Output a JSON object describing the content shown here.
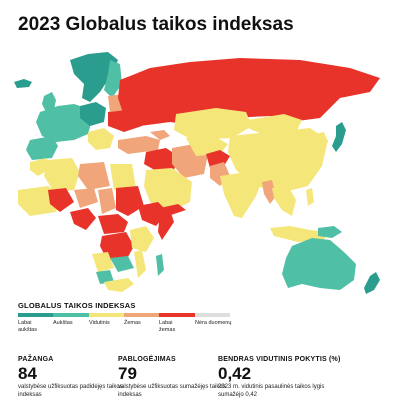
{
  "title": "2023 Globalus taikos indeksas",
  "legend": {
    "title": "GLOBALUS TAIKOS INDEKSAS",
    "items": [
      {
        "label": "Labai aukštas",
        "color": "#2a9d8f"
      },
      {
        "label": "Aukštas",
        "color": "#4fbfa5"
      },
      {
        "label": "Vidutinis",
        "color": "#f5e67a"
      },
      {
        "label": "Žemas",
        "color": "#f0a57a"
      },
      {
        "label": "Labai žemas",
        "color": "#e8332a"
      },
      {
        "label": "Nėra duomenų",
        "color": "#dedede"
      }
    ]
  },
  "stats": [
    {
      "heading": "PAŽANGA",
      "value": "84",
      "description": "valstybėse užfiksuotas padidėjęs taikos indeksas"
    },
    {
      "heading": "PABLOGĖJIMAS",
      "value": "79",
      "description": "valstybėse užfiksuotas sumažėjęs taikos indeksas"
    },
    {
      "heading": "BENDRAS VIDUTINIS POKYTIS (%)",
      "value": "0,42",
      "description": "2023 m. vidutinis pasaulinės taikos lygis sumažėjo 0,42"
    }
  ],
  "map_regions": [
    {
      "region": "Russia",
      "level": "Labai žemas"
    },
    {
      "region": "Ukraine",
      "level": "Labai žemas"
    },
    {
      "region": "Afghanistan",
      "level": "Labai žemas"
    },
    {
      "region": "Syria",
      "level": "Labai žemas"
    },
    {
      "region": "Yemen",
      "level": "Labai žemas"
    },
    {
      "region": "Sudan",
      "level": "Labai žemas"
    },
    {
      "region": "South Sudan",
      "level": "Labai žemas"
    },
    {
      "region": "Somalia",
      "level": "Labai žemas"
    },
    {
      "region": "DR Congo",
      "level": "Labai žemas"
    },
    {
      "region": "Mali",
      "level": "Labai žemas"
    },
    {
      "region": "Iraq",
      "level": "Labai žemas"
    },
    {
      "region": "China",
      "level": "Vidutinis"
    },
    {
      "region": "India",
      "level": "Vidutinis"
    },
    {
      "region": "Saudi Arabia",
      "level": "Vidutinis"
    },
    {
      "region": "Kazakhstan",
      "level": "Vidutinis"
    },
    {
      "region": "Australia",
      "level": "Aukštas"
    },
    {
      "region": "Japan",
      "level": "Labai aukštas"
    },
    {
      "region": "New Zealand",
      "level": "Labai aukštas"
    },
    {
      "region": "Nordic countries",
      "level": "Labai aukštas"
    }
  ]
}
